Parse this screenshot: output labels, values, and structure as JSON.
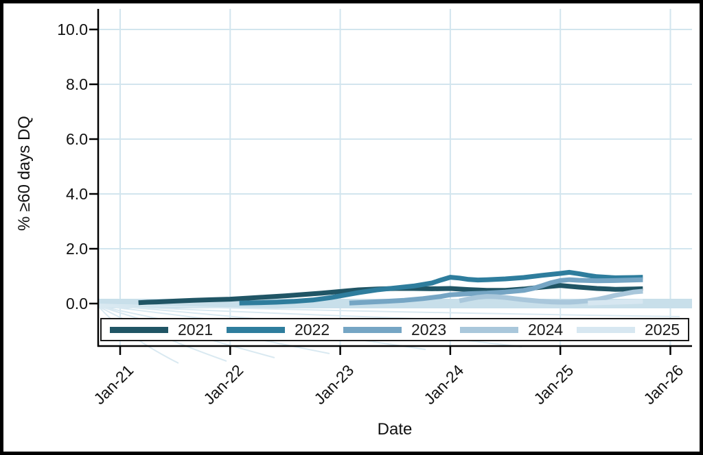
{
  "frame": {
    "color": "#000000"
  },
  "chart_data": {
    "type": "line",
    "title": "",
    "xlabel": "Date",
    "ylabel": "% ≥60 days DQ",
    "grid": true,
    "x_axis": {
      "tick_labels": [
        "Jan-21",
        "Jan-22",
        "Jan-23",
        "Jan-24",
        "Jan-25",
        "Jan-26"
      ],
      "tick_months": [
        0,
        12,
        24,
        36,
        48,
        60
      ],
      "unit": "months since Jan-2021"
    },
    "y_axis": {
      "tick_labels": [
        "0.0",
        "2.0",
        "4.0",
        "6.0",
        "8.0",
        "10.0"
      ],
      "tick_values": [
        0,
        2,
        4,
        6,
        8,
        10
      ],
      "range": [
        0,
        10.9
      ]
    },
    "colors": {
      "gridline": "#d2e5ee",
      "zero_band": "#c8dfea",
      "axis": "#000000",
      "artifact": "#d9e9f1"
    },
    "legend": {
      "position": "bottom-inside",
      "entries": [
        "2021",
        "2022",
        "2023",
        "2024",
        "2025"
      ]
    },
    "series": [
      {
        "name": "2021",
        "color": "#205565",
        "points": [
          [
            2,
            0.03
          ],
          [
            3,
            0.05
          ],
          [
            4,
            0.06
          ],
          [
            6,
            0.09
          ],
          [
            8,
            0.12
          ],
          [
            10,
            0.14
          ],
          [
            12,
            0.16
          ],
          [
            14,
            0.2
          ],
          [
            16,
            0.24
          ],
          [
            18,
            0.28
          ],
          [
            20,
            0.33
          ],
          [
            22,
            0.38
          ],
          [
            24,
            0.44
          ],
          [
            26,
            0.5
          ],
          [
            28,
            0.53
          ],
          [
            30,
            0.55
          ],
          [
            32,
            0.55
          ],
          [
            34,
            0.54
          ],
          [
            36,
            0.55
          ],
          [
            38,
            0.51
          ],
          [
            40,
            0.48
          ],
          [
            42,
            0.48
          ],
          [
            44,
            0.53
          ],
          [
            46,
            0.6
          ],
          [
            48,
            0.66
          ],
          [
            50,
            0.6
          ],
          [
            52,
            0.55
          ],
          [
            54,
            0.52
          ],
          [
            56,
            0.53
          ],
          [
            57,
            0.54
          ]
        ]
      },
      {
        "name": "2022",
        "color": "#2e7d9d",
        "points": [
          [
            13,
            0.02
          ],
          [
            15,
            0.03
          ],
          [
            17,
            0.05
          ],
          [
            19,
            0.08
          ],
          [
            21,
            0.13
          ],
          [
            23,
            0.22
          ],
          [
            24,
            0.28
          ],
          [
            26,
            0.4
          ],
          [
            28,
            0.5
          ],
          [
            30,
            0.57
          ],
          [
            32,
            0.64
          ],
          [
            34,
            0.75
          ],
          [
            35,
            0.86
          ],
          [
            36,
            0.96
          ],
          [
            37,
            0.93
          ],
          [
            38,
            0.88
          ],
          [
            39,
            0.86
          ],
          [
            40,
            0.87
          ],
          [
            42,
            0.9
          ],
          [
            44,
            0.95
          ],
          [
            46,
            1.03
          ],
          [
            48,
            1.1
          ],
          [
            49,
            1.14
          ],
          [
            50,
            1.09
          ],
          [
            51,
            1.03
          ],
          [
            52,
            0.98
          ],
          [
            54,
            0.94
          ],
          [
            56,
            0.95
          ],
          [
            57,
            0.96
          ]
        ]
      },
      {
        "name": "2023",
        "color": "#75a5c4",
        "points": [
          [
            25,
            0.02
          ],
          [
            27,
            0.05
          ],
          [
            29,
            0.08
          ],
          [
            31,
            0.12
          ],
          [
            33,
            0.18
          ],
          [
            35,
            0.26
          ],
          [
            36,
            0.32
          ],
          [
            38,
            0.36
          ],
          [
            40,
            0.38
          ],
          [
            42,
            0.42
          ],
          [
            44,
            0.48
          ],
          [
            45,
            0.55
          ],
          [
            46,
            0.65
          ],
          [
            47,
            0.76
          ],
          [
            48,
            0.84
          ],
          [
            49,
            0.87
          ],
          [
            50,
            0.85
          ],
          [
            52,
            0.83
          ],
          [
            54,
            0.84
          ],
          [
            56,
            0.86
          ],
          [
            57,
            0.87
          ]
        ]
      },
      {
        "name": "2024",
        "color": "#a9c7db",
        "points": [
          [
            37,
            0.1
          ],
          [
            38,
            0.17
          ],
          [
            39,
            0.23
          ],
          [
            40,
            0.26
          ],
          [
            41,
            0.25
          ],
          [
            42,
            0.22
          ],
          [
            43,
            0.18
          ],
          [
            44,
            0.14
          ],
          [
            45,
            0.11
          ],
          [
            46,
            0.08
          ],
          [
            47,
            0.06
          ],
          [
            48,
            0.05
          ],
          [
            49,
            0.05
          ],
          [
            50,
            0.07
          ],
          [
            51,
            0.1
          ],
          [
            52,
            0.15
          ],
          [
            53,
            0.22
          ],
          [
            54,
            0.3
          ],
          [
            55,
            0.36
          ],
          [
            56,
            0.42
          ],
          [
            57,
            0.45
          ]
        ]
      },
      {
        "name": "2025",
        "color": "#d7e7f1",
        "points": [
          [
            51,
            0.02
          ],
          [
            52,
            0.03
          ],
          [
            53,
            0.04
          ],
          [
            54,
            0.05
          ],
          [
            55,
            0.06
          ],
          [
            56,
            0.07
          ],
          [
            57,
            0.08
          ]
        ]
      }
    ],
    "artifact_fan_lines": [
      [
        145,
        445,
        430,
        468,
        760,
        506
      ],
      [
        145,
        446,
        380,
        474,
        620,
        510
      ],
      [
        145,
        447,
        300,
        480,
        480,
        516
      ],
      [
        145,
        447,
        260,
        484,
        400,
        522
      ],
      [
        145,
        448,
        220,
        488,
        330,
        527
      ],
      [
        145,
        449,
        185,
        492,
        260,
        530
      ],
      [
        145,
        446,
        560,
        465,
        1000,
        478
      ],
      [
        145,
        444,
        500,
        455,
        990,
        462
      ]
    ]
  }
}
